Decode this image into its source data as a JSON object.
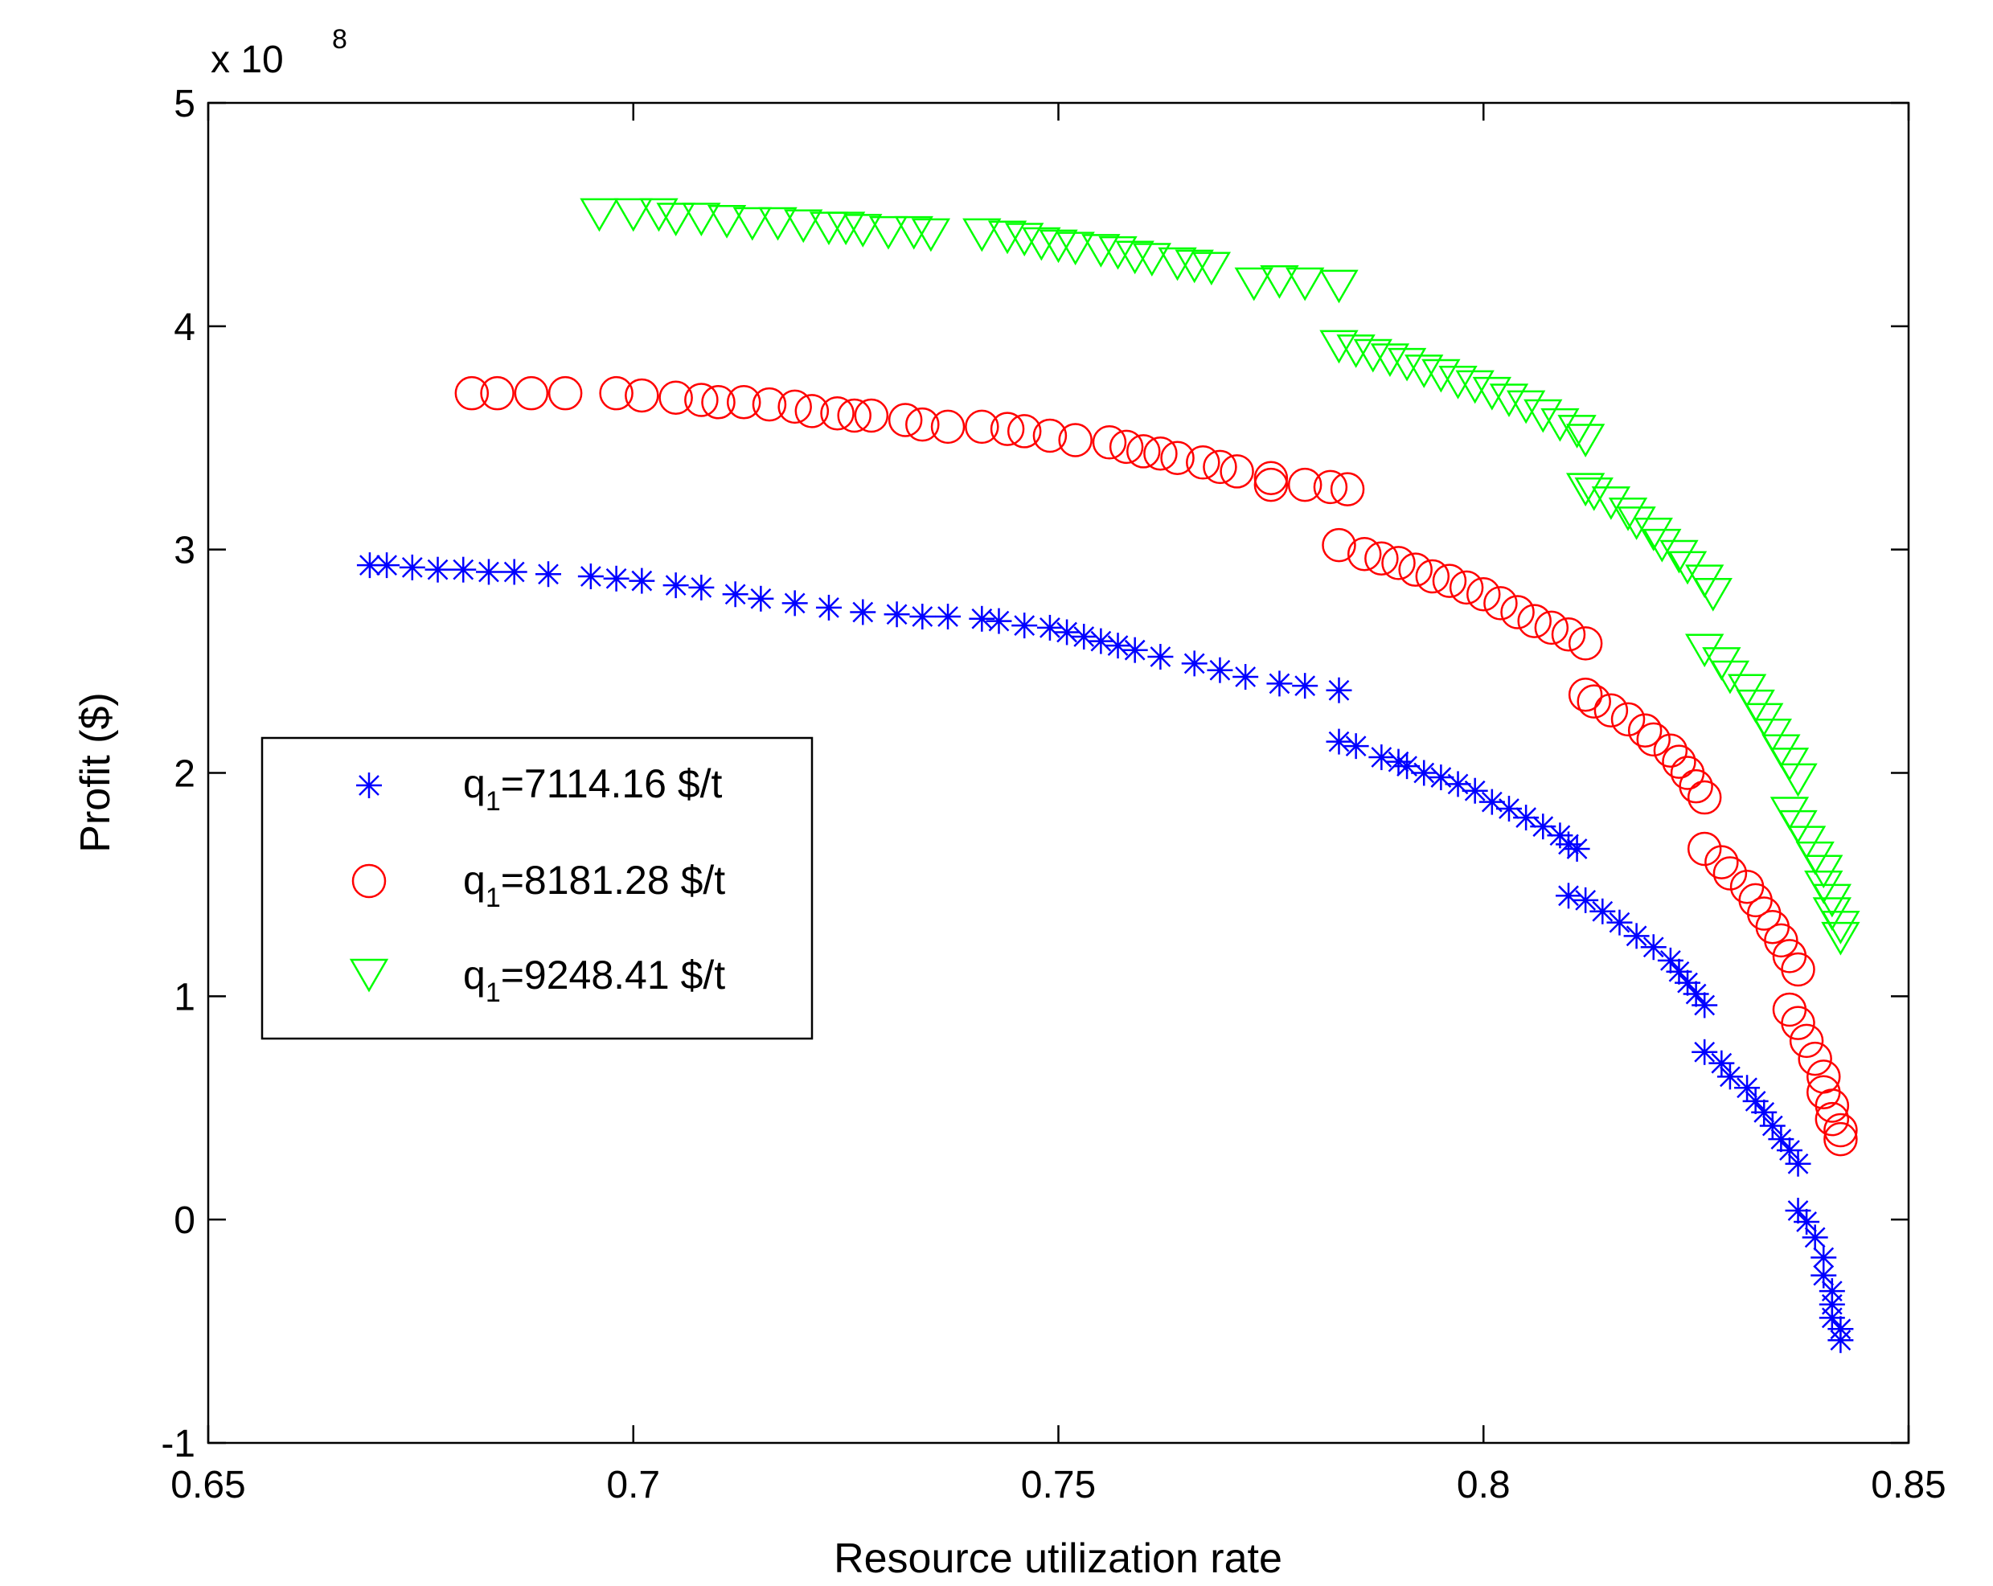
{
  "chart_data": {
    "type": "scatter",
    "title": "",
    "xlabel": "Resource utilization rate",
    "ylabel": "Profit ($)",
    "xlim": [
      0.65,
      0.85
    ],
    "ylim": [
      -1,
      5
    ],
    "y_multiplier_label": "x 10",
    "y_multiplier_exponent": "8",
    "xticks": [
      "0.65",
      "0.7",
      "0.75",
      "0.8",
      "0.85"
    ],
    "yticks": [
      "-1",
      "0",
      "1",
      "2",
      "3",
      "4",
      "5"
    ],
    "xtick_values": [
      0.65,
      0.7,
      0.75,
      0.8,
      0.85
    ],
    "ytick_values": [
      -1,
      0,
      1,
      2,
      3,
      4,
      5
    ],
    "grid": false,
    "legend_position": "center-left",
    "series": [
      {
        "name": "q1=7114.16 $/t",
        "legend_prefix": "q",
        "legend_sub": "1",
        "legend_rest": "=7114.16 $/t",
        "marker": "star",
        "color": "#0000ff",
        "points": [
          [
            0.669,
            2.93
          ],
          [
            0.671,
            2.93
          ],
          [
            0.674,
            2.92
          ],
          [
            0.677,
            2.91
          ],
          [
            0.68,
            2.91
          ],
          [
            0.683,
            2.9
          ],
          [
            0.686,
            2.9
          ],
          [
            0.69,
            2.89
          ],
          [
            0.695,
            2.88
          ],
          [
            0.698,
            2.87
          ],
          [
            0.701,
            2.86
          ],
          [
            0.705,
            2.84
          ],
          [
            0.708,
            2.83
          ],
          [
            0.712,
            2.8
          ],
          [
            0.715,
            2.78
          ],
          [
            0.719,
            2.76
          ],
          [
            0.723,
            2.74
          ],
          [
            0.727,
            2.72
          ],
          [
            0.731,
            2.71
          ],
          [
            0.734,
            2.7
          ],
          [
            0.737,
            2.7
          ],
          [
            0.741,
            2.69
          ],
          [
            0.743,
            2.68
          ],
          [
            0.746,
            2.66
          ],
          [
            0.749,
            2.65
          ],
          [
            0.751,
            2.63
          ],
          [
            0.753,
            2.61
          ],
          [
            0.755,
            2.59
          ],
          [
            0.757,
            2.57
          ],
          [
            0.759,
            2.55
          ],
          [
            0.762,
            2.52
          ],
          [
            0.766,
            2.49
          ],
          [
            0.769,
            2.46
          ],
          [
            0.772,
            2.43
          ],
          [
            0.776,
            2.4
          ],
          [
            0.779,
            2.39
          ],
          [
            0.783,
            2.37
          ],
          [
            0.783,
            2.14
          ],
          [
            0.785,
            2.12
          ],
          [
            0.788,
            2.07
          ],
          [
            0.79,
            2.05
          ],
          [
            0.791,
            2.03
          ],
          [
            0.793,
            2.0
          ],
          [
            0.795,
            1.98
          ],
          [
            0.797,
            1.95
          ],
          [
            0.799,
            1.92
          ],
          [
            0.801,
            1.87
          ],
          [
            0.803,
            1.84
          ],
          [
            0.805,
            1.8
          ],
          [
            0.807,
            1.76
          ],
          [
            0.809,
            1.72
          ],
          [
            0.81,
            1.68
          ],
          [
            0.811,
            1.66
          ],
          [
            0.81,
            1.45
          ],
          [
            0.812,
            1.43
          ],
          [
            0.814,
            1.38
          ],
          [
            0.816,
            1.33
          ],
          [
            0.818,
            1.27
          ],
          [
            0.82,
            1.22
          ],
          [
            0.822,
            1.16
          ],
          [
            0.823,
            1.11
          ],
          [
            0.824,
            1.06
          ],
          [
            0.825,
            1.01
          ],
          [
            0.826,
            0.96
          ],
          [
            0.826,
            0.75
          ],
          [
            0.828,
            0.7
          ],
          [
            0.829,
            0.64
          ],
          [
            0.831,
            0.59
          ],
          [
            0.832,
            0.53
          ],
          [
            0.833,
            0.48
          ],
          [
            0.834,
            0.42
          ],
          [
            0.835,
            0.36
          ],
          [
            0.836,
            0.31
          ],
          [
            0.837,
            0.25
          ],
          [
            0.837,
            0.04
          ],
          [
            0.838,
            -0.01
          ],
          [
            0.839,
            -0.08
          ],
          [
            0.84,
            -0.17
          ],
          [
            0.84,
            -0.25
          ],
          [
            0.841,
            -0.32
          ],
          [
            0.841,
            -0.38
          ],
          [
            0.841,
            -0.44
          ],
          [
            0.842,
            -0.49
          ],
          [
            0.842,
            -0.54
          ]
        ]
      },
      {
        "name": "q1=8181.28 $/t",
        "legend_prefix": "q",
        "legend_sub": "1",
        "legend_rest": "=8181.28 $/t",
        "marker": "circle",
        "color": "#ff0000",
        "points": [
          [
            0.681,
            3.7
          ],
          [
            0.684,
            3.7
          ],
          [
            0.688,
            3.7
          ],
          [
            0.692,
            3.7
          ],
          [
            0.698,
            3.7
          ],
          [
            0.701,
            3.69
          ],
          [
            0.705,
            3.68
          ],
          [
            0.708,
            3.67
          ],
          [
            0.71,
            3.66
          ],
          [
            0.713,
            3.66
          ],
          [
            0.716,
            3.65
          ],
          [
            0.719,
            3.64
          ],
          [
            0.721,
            3.62
          ],
          [
            0.724,
            3.61
          ],
          [
            0.726,
            3.6
          ],
          [
            0.728,
            3.6
          ],
          [
            0.732,
            3.58
          ],
          [
            0.734,
            3.56
          ],
          [
            0.737,
            3.55
          ],
          [
            0.741,
            3.55
          ],
          [
            0.744,
            3.54
          ],
          [
            0.746,
            3.53
          ],
          [
            0.749,
            3.51
          ],
          [
            0.752,
            3.49
          ],
          [
            0.756,
            3.48
          ],
          [
            0.758,
            3.46
          ],
          [
            0.76,
            3.44
          ],
          [
            0.762,
            3.43
          ],
          [
            0.764,
            3.41
          ],
          [
            0.767,
            3.39
          ],
          [
            0.769,
            3.37
          ],
          [
            0.771,
            3.35
          ],
          [
            0.775,
            3.32
          ],
          [
            0.775,
            3.29
          ],
          [
            0.779,
            3.29
          ],
          [
            0.782,
            3.28
          ],
          [
            0.784,
            3.27
          ],
          [
            0.783,
            3.02
          ],
          [
            0.786,
            2.98
          ],
          [
            0.788,
            2.96
          ],
          [
            0.79,
            2.94
          ],
          [
            0.792,
            2.91
          ],
          [
            0.794,
            2.88
          ],
          [
            0.796,
            2.86
          ],
          [
            0.798,
            2.83
          ],
          [
            0.8,
            2.8
          ],
          [
            0.802,
            2.76
          ],
          [
            0.804,
            2.72
          ],
          [
            0.806,
            2.68
          ],
          [
            0.808,
            2.65
          ],
          [
            0.81,
            2.62
          ],
          [
            0.812,
            2.58
          ],
          [
            0.812,
            2.35
          ],
          [
            0.813,
            2.32
          ],
          [
            0.815,
            2.28
          ],
          [
            0.817,
            2.24
          ],
          [
            0.819,
            2.19
          ],
          [
            0.82,
            2.15
          ],
          [
            0.822,
            2.1
          ],
          [
            0.823,
            2.05
          ],
          [
            0.824,
            2.0
          ],
          [
            0.825,
            1.94
          ],
          [
            0.826,
            1.89
          ],
          [
            0.826,
            1.66
          ],
          [
            0.828,
            1.6
          ],
          [
            0.829,
            1.55
          ],
          [
            0.831,
            1.49
          ],
          [
            0.832,
            1.43
          ],
          [
            0.833,
            1.37
          ],
          [
            0.834,
            1.31
          ],
          [
            0.835,
            1.25
          ],
          [
            0.836,
            1.18
          ],
          [
            0.837,
            1.12
          ],
          [
            0.836,
            0.94
          ],
          [
            0.837,
            0.88
          ],
          [
            0.838,
            0.8
          ],
          [
            0.839,
            0.72
          ],
          [
            0.84,
            0.64
          ],
          [
            0.84,
            0.57
          ],
          [
            0.841,
            0.51
          ],
          [
            0.841,
            0.45
          ],
          [
            0.842,
            0.4
          ],
          [
            0.842,
            0.36
          ]
        ]
      },
      {
        "name": "q1=9248.41 $/t",
        "legend_prefix": "q",
        "legend_sub": "1",
        "legend_rest": "=9248.41 $/t",
        "marker": "triangle-down",
        "color": "#00ff00",
        "points": [
          [
            0.696,
            4.5
          ],
          [
            0.7,
            4.5
          ],
          [
            0.703,
            4.5
          ],
          [
            0.705,
            4.48
          ],
          [
            0.708,
            4.48
          ],
          [
            0.711,
            4.47
          ],
          [
            0.714,
            4.46
          ],
          [
            0.717,
            4.46
          ],
          [
            0.72,
            4.45
          ],
          [
            0.723,
            4.44
          ],
          [
            0.725,
            4.44
          ],
          [
            0.727,
            4.43
          ],
          [
            0.73,
            4.42
          ],
          [
            0.733,
            4.42
          ],
          [
            0.735,
            4.41
          ],
          [
            0.741,
            4.41
          ],
          [
            0.744,
            4.4
          ],
          [
            0.746,
            4.39
          ],
          [
            0.748,
            4.37
          ],
          [
            0.75,
            4.36
          ],
          [
            0.752,
            4.35
          ],
          [
            0.755,
            4.34
          ],
          [
            0.757,
            4.33
          ],
          [
            0.759,
            4.31
          ],
          [
            0.761,
            4.3
          ],
          [
            0.764,
            4.28
          ],
          [
            0.766,
            4.27
          ],
          [
            0.768,
            4.26
          ],
          [
            0.773,
            4.19
          ],
          [
            0.776,
            4.2
          ],
          [
            0.779,
            4.19
          ],
          [
            0.783,
            4.18
          ],
          [
            0.783,
            3.91
          ],
          [
            0.785,
            3.89
          ],
          [
            0.787,
            3.87
          ],
          [
            0.789,
            3.85
          ],
          [
            0.791,
            3.83
          ],
          [
            0.793,
            3.8
          ],
          [
            0.795,
            3.78
          ],
          [
            0.797,
            3.75
          ],
          [
            0.799,
            3.73
          ],
          [
            0.801,
            3.7
          ],
          [
            0.803,
            3.67
          ],
          [
            0.805,
            3.64
          ],
          [
            0.807,
            3.6
          ],
          [
            0.809,
            3.56
          ],
          [
            0.811,
            3.53
          ],
          [
            0.812,
            3.49
          ],
          [
            0.812,
            3.27
          ],
          [
            0.813,
            3.25
          ],
          [
            0.815,
            3.21
          ],
          [
            0.817,
            3.16
          ],
          [
            0.818,
            3.12
          ],
          [
            0.82,
            3.07
          ],
          [
            0.821,
            3.02
          ],
          [
            0.823,
            2.97
          ],
          [
            0.824,
            2.92
          ],
          [
            0.826,
            2.86
          ],
          [
            0.827,
            2.8
          ],
          [
            0.826,
            2.55
          ],
          [
            0.828,
            2.49
          ],
          [
            0.829,
            2.43
          ],
          [
            0.831,
            2.37
          ],
          [
            0.832,
            2.3
          ],
          [
            0.833,
            2.24
          ],
          [
            0.834,
            2.17
          ],
          [
            0.835,
            2.1
          ],
          [
            0.836,
            2.04
          ],
          [
            0.837,
            1.97
          ],
          [
            0.836,
            1.82
          ],
          [
            0.837,
            1.76
          ],
          [
            0.838,
            1.69
          ],
          [
            0.839,
            1.62
          ],
          [
            0.84,
            1.56
          ],
          [
            0.84,
            1.49
          ],
          [
            0.841,
            1.43
          ],
          [
            0.841,
            1.37
          ],
          [
            0.842,
            1.31
          ],
          [
            0.842,
            1.26
          ]
        ]
      }
    ]
  }
}
